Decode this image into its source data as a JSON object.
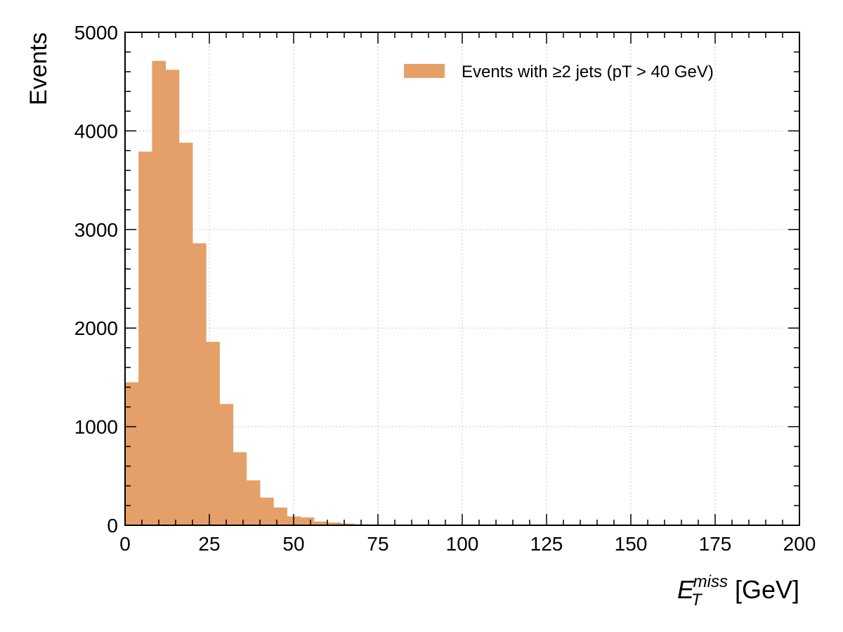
{
  "chart_data": {
    "type": "bar",
    "histogram": true,
    "bin_width": 4,
    "bin_edges_start": 0,
    "values": [
      1450,
      3790,
      4710,
      4620,
      3880,
      2860,
      1860,
      1230,
      740,
      455,
      280,
      180,
      90,
      80,
      38,
      28,
      18,
      10,
      8,
      6,
      4,
      3,
      2,
      1,
      0
    ],
    "xlim": [
      0,
      200
    ],
    "ylim": [
      0,
      5000
    ],
    "x_ticks": [
      0,
      25,
      50,
      75,
      100,
      125,
      150,
      175,
      200
    ],
    "y_ticks": [
      0,
      1000,
      2000,
      3000,
      4000,
      5000
    ],
    "x_tick_labels": [
      "0",
      "25",
      "50",
      "75",
      "100",
      "125",
      "150",
      "175",
      "200"
    ],
    "y_tick_labels": [
      "0",
      "1000",
      "2000",
      "3000",
      "4000",
      "5000"
    ],
    "xlabel_main": "E",
    "xlabel_sub": "T",
    "xlabel_sup": "miss",
    "xlabel_unit": " [GeV]",
    "ylabel": "Events",
    "legend": {
      "label": "Events with ≥2 jets (pT > 40 GeV)",
      "placement": "top-right"
    },
    "grid": true,
    "colors": {
      "bar": "#e4a068",
      "grid": "#d0d0d0",
      "frame": "#000000"
    }
  }
}
